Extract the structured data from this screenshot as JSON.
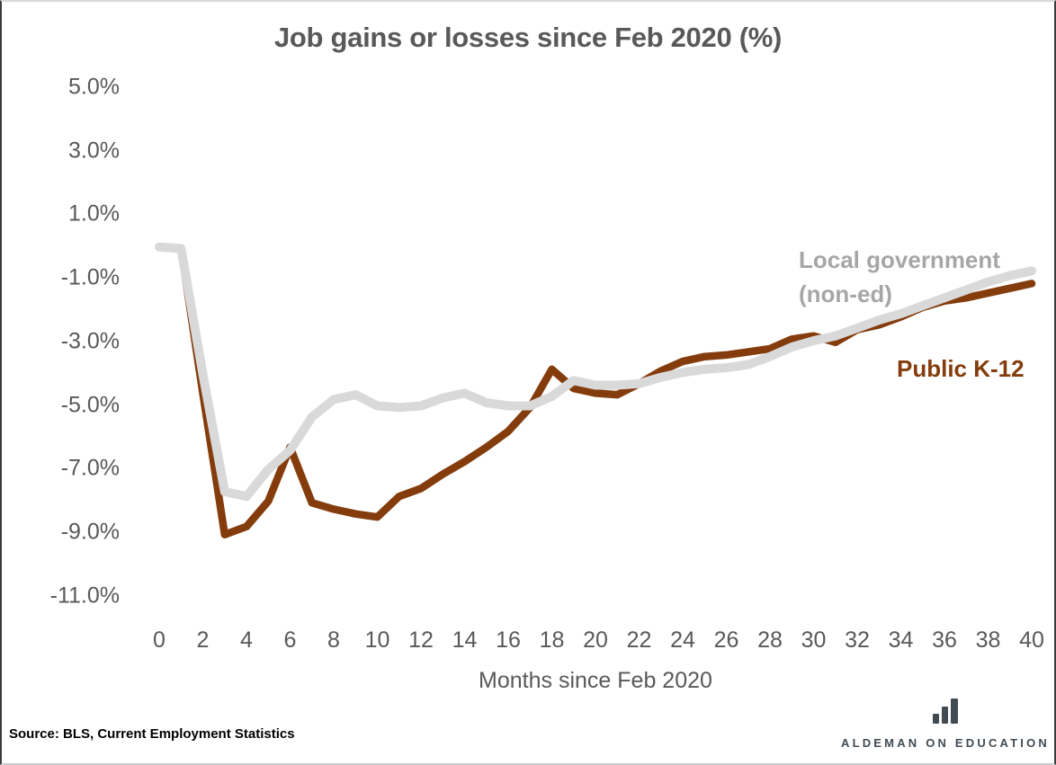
{
  "chart_data": {
    "type": "line",
    "title": "Job gains or losses since Feb 2020 (%)",
    "xlabel": "Months since Feb 2020",
    "ylabel": "",
    "grid": false,
    "legend_position": "inline-right",
    "xlim": [
      0,
      40
    ],
    "ylim": [
      -11,
      5
    ],
    "x_ticks": [
      0,
      2,
      4,
      6,
      8,
      10,
      12,
      14,
      16,
      18,
      20,
      22,
      24,
      26,
      28,
      30,
      32,
      34,
      36,
      38,
      40
    ],
    "y_ticks": [
      5,
      3,
      1,
      -1,
      -3,
      -5,
      -7,
      -9,
      -11
    ],
    "y_tick_labels": [
      "5.0%",
      "3.0%",
      "1.0%",
      "-1.0%",
      "-3.0%",
      "-5.0%",
      "-7.0%",
      "-9.0%",
      "-11.0%"
    ],
    "x": [
      0,
      1,
      2,
      3,
      4,
      5,
      6,
      7,
      8,
      9,
      10,
      11,
      12,
      13,
      14,
      15,
      16,
      17,
      18,
      19,
      20,
      21,
      22,
      23,
      24,
      25,
      26,
      27,
      28,
      29,
      30,
      31,
      32,
      33,
      34,
      35,
      36,
      37,
      38,
      39,
      40
    ],
    "series": [
      {
        "name": "Local government (non-ed)",
        "label_line1": "Local government",
        "label_line2": "(non-ed)",
        "color": "#d9d9d9",
        "label_color": "#a6a6a6",
        "values": [
          0.0,
          -0.05,
          -4.0,
          -7.7,
          -7.85,
          -7.0,
          -6.4,
          -5.35,
          -4.8,
          -4.65,
          -5.0,
          -5.05,
          -5.0,
          -4.75,
          -4.6,
          -4.9,
          -5.0,
          -5.0,
          -4.7,
          -4.2,
          -4.35,
          -4.35,
          -4.3,
          -4.1,
          -3.95,
          -3.85,
          -3.8,
          -3.7,
          -3.45,
          -3.15,
          -2.95,
          -2.8,
          -2.55,
          -2.3,
          -2.1,
          -1.85,
          -1.6,
          -1.35,
          -1.1,
          -0.9,
          -0.75
        ]
      },
      {
        "name": "Public K-12",
        "label": "Public K-12",
        "color": "#843c0c",
        "label_color": "#843c0c",
        "values": [
          0.0,
          -0.05,
          -4.6,
          -9.05,
          -8.8,
          -8.0,
          -6.3,
          -8.05,
          -8.25,
          -8.4,
          -8.5,
          -7.85,
          -7.6,
          -7.15,
          -6.75,
          -6.3,
          -5.8,
          -5.05,
          -3.85,
          -4.45,
          -4.6,
          -4.65,
          -4.3,
          -3.9,
          -3.6,
          -3.45,
          -3.4,
          -3.3,
          -3.2,
          -2.9,
          -2.8,
          -3.0,
          -2.6,
          -2.45,
          -2.2,
          -1.9,
          -1.7,
          -1.6,
          -1.45,
          -1.3,
          -1.15
        ]
      }
    ]
  },
  "footer": {
    "source": "Source: BLS, Current Employment Statistics",
    "brand": "ALDEMAN ON EDUCATION",
    "logo_color": "#414b54"
  }
}
